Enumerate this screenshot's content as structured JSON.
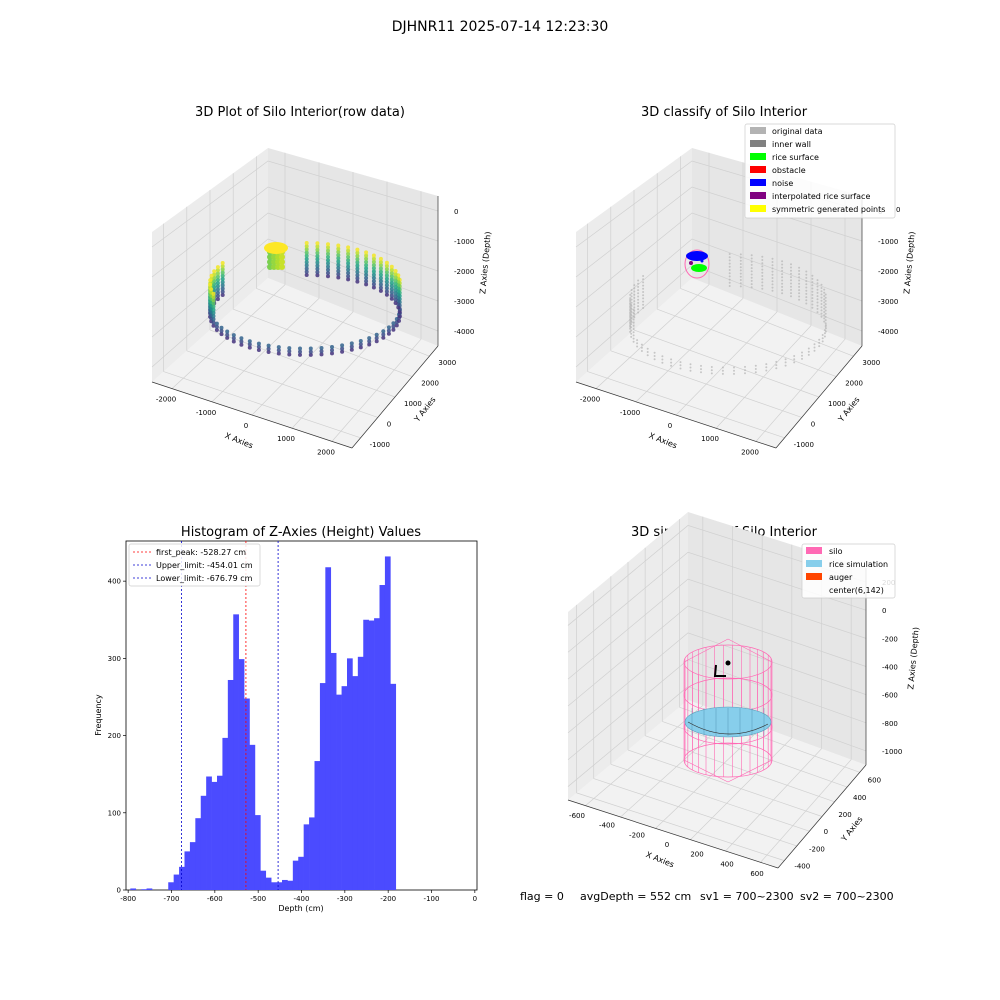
{
  "suptitle": "DJHNR11 2025-07-14 12:23:30",
  "footer": {
    "flag": "flag = 0",
    "avg_depth": "avgDepth = 552 cm",
    "sv1": "sv1 = 700~2300",
    "sv2": "sv2 = 700~2300"
  },
  "colors": {
    "original_data": "#b3b3b3",
    "inner_wall": "#808080",
    "rice_surface": "#00ff00",
    "obstacle": "#ff0000",
    "noise": "#0000ff",
    "interpolated_rice_surface": "#800080",
    "symmetric_generated_points": "#ffff00",
    "silo": "#ff69b4",
    "rice_simulation": "#87ceeb",
    "auger": "#ff4500",
    "histogram_bar": "#4b4bff",
    "first_peak_line": "#ff0000",
    "limit_line": "#0000cc"
  },
  "chart_data": [
    {
      "type": "scatter",
      "subtype": "3d",
      "title": "3D Plot of Silo Interior(row data)",
      "xlabel": "X Axies",
      "ylabel": "Y Axies",
      "zlabel": "Z Axies (Depth)",
      "x_ticks": [
        "-2000",
        "-1000",
        "0",
        "1000",
        "2000"
      ],
      "y_ticks": [
        "-1000",
        "0",
        "1000",
        "2000",
        "3000"
      ],
      "z_ticks": [
        "0",
        "-1000",
        "-2000",
        "-3000",
        "-4000"
      ],
      "xlim": [
        -2400,
        2400
      ],
      "ylim": [
        -1200,
        3600
      ],
      "zlim": [
        -4600,
        300
      ],
      "colormap": "viridis",
      "ring": {
        "center": [
          0,
          1200
        ],
        "radius": 2000,
        "z_top": -2000,
        "z_bottom": -4500
      },
      "top_cluster": {
        "x": -1300,
        "y": 2800,
        "z_range": [
          -700,
          -300
        ]
      }
    },
    {
      "type": "scatter",
      "subtype": "3d",
      "title": "3D classify of Silo Interior",
      "xlabel": "X Axies",
      "ylabel": "Y Axies",
      "zlabel": "Z Axies (Depth)",
      "x_ticks": [
        "-2000",
        "-1000",
        "0",
        "1000",
        "2000"
      ],
      "y_ticks": [
        "-1000",
        "0",
        "1000",
        "2000",
        "3000"
      ],
      "z_ticks": [
        "0",
        "-1000",
        "-2000",
        "-3000",
        "-4000"
      ],
      "xlim": [
        -2400,
        2400
      ],
      "ylim": [
        -1200,
        3600
      ],
      "zlim": [
        -4600,
        300
      ],
      "legend_position": "top-right",
      "legend": [
        {
          "label": "original data",
          "color_key": "original_data"
        },
        {
          "label": "inner wall",
          "color_key": "inner_wall"
        },
        {
          "label": "rice surface",
          "color_key": "rice_surface"
        },
        {
          "label": "obstacle",
          "color_key": "obstacle"
        },
        {
          "label": "noise",
          "color_key": "noise"
        },
        {
          "label": "interpolated rice surface",
          "color_key": "interpolated_rice_surface"
        },
        {
          "label": "symmetric generated points",
          "color_key": "symmetric_generated_points"
        }
      ],
      "partial_tick_label": "0"
    },
    {
      "type": "bar",
      "subtype": "histogram",
      "title": "Histogram of Z-Axies (Height) Values",
      "xlabel": "Depth (cm)",
      "ylabel": "Frequency",
      "xlim": [
        -805,
        5
      ],
      "ylim": [
        0,
        452
      ],
      "x_ticks": [
        -800,
        -700,
        -600,
        -500,
        -400,
        -300,
        -200,
        -100,
        0
      ],
      "y_ticks": [
        0,
        100,
        200,
        300,
        400
      ],
      "bin_start": -795,
      "bin_width": 12.5,
      "counts": [
        2,
        0,
        1,
        2,
        0,
        0,
        0,
        10,
        20,
        30,
        50,
        62,
        93,
        122,
        147,
        140,
        148,
        197,
        272,
        357,
        299,
        248,
        188,
        97,
        25,
        16,
        10,
        10,
        13,
        12,
        38,
        43,
        85,
        94,
        167,
        268,
        418,
        307,
        253,
        264,
        300,
        277,
        302,
        350,
        349,
        352,
        395,
        432,
        267
      ],
      "legend_position": "top-left",
      "vlines": [
        {
          "label": "first_peak: -528.27 cm",
          "x": -528.27,
          "color_key": "first_peak_line"
        },
        {
          "label": "Upper_limit: -454.01 cm",
          "x": -454.01,
          "color_key": "limit_line"
        },
        {
          "label": "Lower_limit: -676.79 cm",
          "x": -676.79,
          "color_key": "limit_line"
        }
      ]
    },
    {
      "type": "scatter",
      "subtype": "3d-simulation",
      "title": "3D simulation of Silo Interior",
      "xlabel": "X Axies",
      "ylabel": "Y Axies",
      "zlabel": "Z Axies (Depth)",
      "x_ticks": [
        "-600",
        "-400",
        "-200",
        "0",
        "200",
        "400",
        "600"
      ],
      "y_ticks": [
        "-400",
        "-200",
        "0",
        "200",
        "400",
        "600"
      ],
      "z_ticks": [
        "200",
        "0",
        "-200",
        "-400",
        "-600",
        "-800",
        "-1000"
      ],
      "xlim": [
        -700,
        700
      ],
      "ylim": [
        -500,
        700
      ],
      "zlim": [
        -1100,
        250
      ],
      "legend_position": "top-right",
      "legend": [
        {
          "label": "silo",
          "color_key": "silo"
        },
        {
          "label": "rice simulation",
          "color_key": "rice_simulation"
        },
        {
          "label": "auger",
          "color_key": "auger"
        },
        {
          "label": "center(6,142)",
          "color_key": ""
        }
      ],
      "silo": {
        "radius": 400,
        "z_top": 0,
        "z_bottom": -1000
      },
      "rice_depth": -552,
      "center": [
        6,
        142
      ]
    }
  ]
}
